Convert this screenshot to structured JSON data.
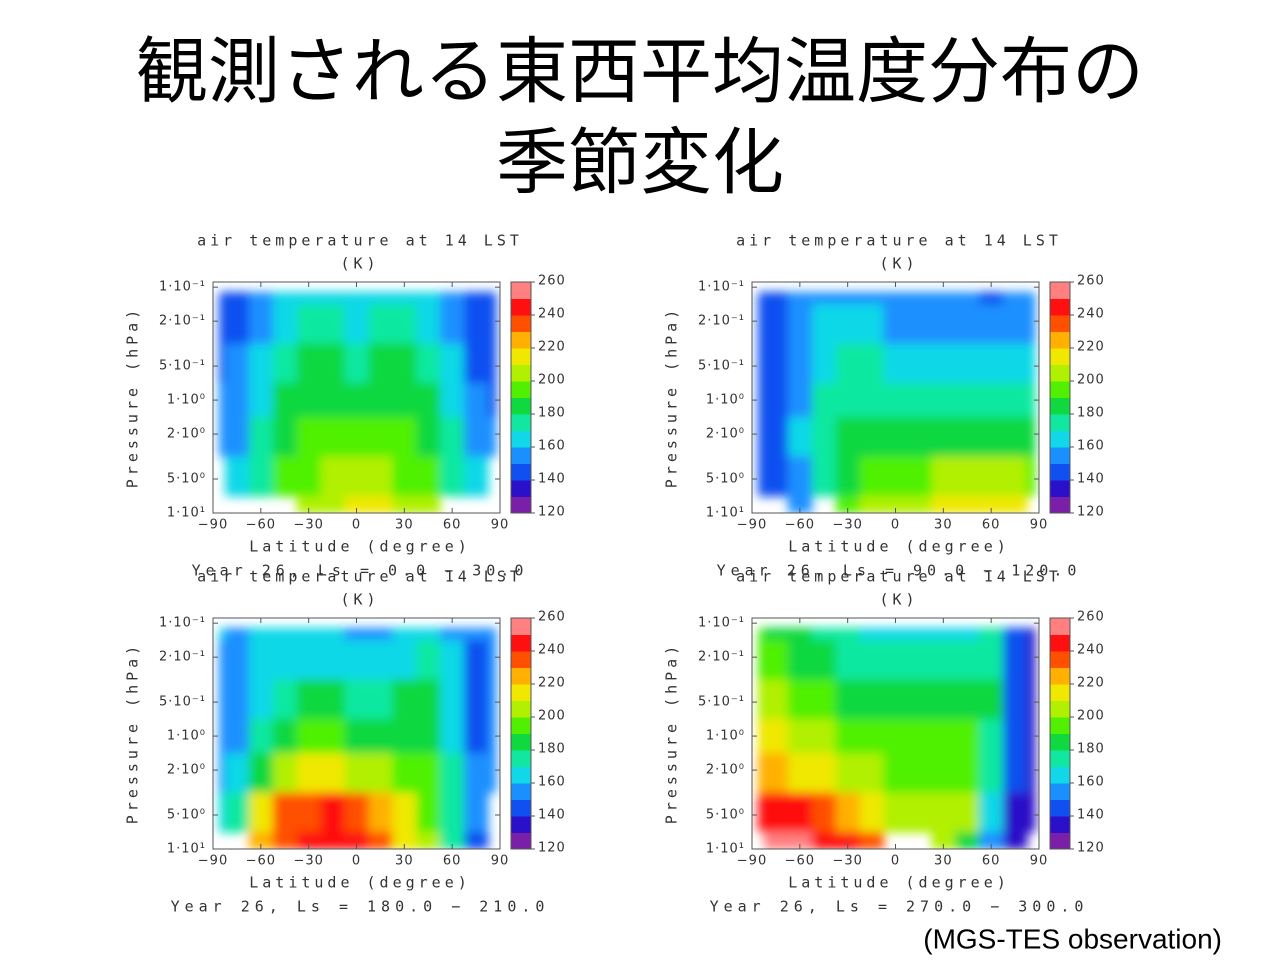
{
  "title": [
    "観測される東西平均温度分布の",
    "季節変化"
  ],
  "source": "(MGS-TES observation)",
  "chart_data": [
    {
      "type": "contour",
      "title": [
        "air temperature at 14 LST",
        "(K)"
      ],
      "xlabel": "Latitude (degree)",
      "ylabel": "Pressure (hPa)",
      "footer": "Year 26, Ls = 0.0 − 30.0",
      "x": [
        -90,
        -75,
        -60,
        -45,
        -30,
        -15,
        0,
        15,
        30,
        45,
        60,
        75,
        90
      ],
      "y": [
        0.1,
        0.2,
        0.5,
        1,
        2,
        5,
        10
      ],
      "z": [
        [
          145,
          145,
          150,
          160,
          165,
          165,
          162,
          165,
          165,
          160,
          150,
          145,
          145
        ],
        [
          145,
          148,
          155,
          165,
          170,
          170,
          168,
          170,
          170,
          165,
          152,
          145,
          145
        ],
        [
          148,
          150,
          160,
          175,
          180,
          180,
          178,
          180,
          180,
          175,
          160,
          148,
          145
        ],
        [
          150,
          155,
          165,
          180,
          185,
          185,
          185,
          185,
          185,
          180,
          165,
          150,
          148
        ],
        [
          152,
          158,
          170,
          185,
          190,
          192,
          192,
          192,
          190,
          185,
          170,
          155,
          150
        ],
        [
          null,
          160,
          175,
          190,
          195,
          200,
          205,
          200,
          195,
          190,
          175,
          160,
          null
        ],
        [
          null,
          null,
          null,
          null,
          200,
          205,
          215,
          210,
          205,
          200,
          null,
          null,
          null
        ]
      ],
      "xlim": [
        -90,
        90
      ],
      "ylim": [
        10,
        0.09
      ],
      "ylog": true,
      "xticks": [
        {
          "value": -90,
          "label": "−90"
        },
        {
          "value": -60,
          "label": "−60"
        },
        {
          "value": -30,
          "label": "−30"
        },
        0,
        30,
        60,
        90
      ],
      "yticks": [
        {
          "value": 0.1,
          "label": "1·10⁻¹"
        },
        {
          "value": 0.2,
          "label": "2·10⁻¹"
        },
        {
          "value": 0.5,
          "label": "5·10⁻¹"
        },
        {
          "value": 1,
          "label": "1·10⁰"
        },
        {
          "value": 2,
          "label": "2·10⁰"
        },
        {
          "value": 5,
          "label": "5·10⁰"
        },
        {
          "value": 10,
          "label": "1·10¹"
        }
      ],
      "colorbar": {
        "ticks": [
          120,
          140,
          160,
          180,
          200,
          220,
          240,
          260
        ],
        "levels": [
          120,
          130,
          140,
          150,
          160,
          170,
          180,
          190,
          200,
          210,
          220,
          230,
          240,
          250,
          260
        ],
        "colors": [
          "#7a1fa8",
          "#2a10c8",
          "#1050f0",
          "#1a90ff",
          "#10d8e8",
          "#10e8a0",
          "#10d840",
          "#50f000",
          "#b0f000",
          "#f0e800",
          "#ffb000",
          "#ff5000",
          "#ff1010",
          "#ff8080"
        ]
      }
    },
    {
      "type": "contour",
      "title": [
        "air temperature at 14 LST",
        "(K)"
      ],
      "xlabel": "Latitude (degree)",
      "ylabel": "Pressure (hPa)",
      "footer": "Year 26, Ls = 90.0 − 120.0",
      "x": [
        -90,
        -75,
        -60,
        -45,
        -30,
        -15,
        0,
        15,
        30,
        45,
        60,
        75,
        90
      ],
      "y": [
        0.1,
        0.2,
        0.5,
        1,
        2,
        5,
        10
      ],
      "z": [
        [
          145,
          140,
          150,
          155,
          155,
          155,
          152,
          150,
          150,
          150,
          148,
          150,
          150
        ],
        [
          145,
          140,
          152,
          160,
          162,
          160,
          158,
          155,
          155,
          155,
          155,
          155,
          155
        ],
        [
          145,
          142,
          155,
          165,
          170,
          170,
          168,
          165,
          165,
          165,
          165,
          165,
          165
        ],
        [
          145,
          145,
          158,
          170,
          175,
          178,
          178,
          178,
          178,
          178,
          178,
          178,
          178
        ],
        [
          145,
          145,
          160,
          172,
          180,
          185,
          185,
          185,
          188,
          188,
          188,
          188,
          188
        ],
        [
          145,
          145,
          155,
          170,
          185,
          192,
          195,
          198,
          200,
          200,
          200,
          200,
          198
        ],
        [
          null,
          null,
          150,
          null,
          190,
          200,
          205,
          205,
          210,
          210,
          215,
          210,
          null
        ]
      ],
      "xlim": [
        -90,
        90
      ],
      "ylim": [
        10,
        0.09
      ],
      "ylog": true,
      "xticks": [
        {
          "value": -90,
          "label": "−90"
        },
        {
          "value": -60,
          "label": "−60"
        },
        {
          "value": -30,
          "label": "−30"
        },
        0,
        30,
        60,
        90
      ],
      "yticks": [
        {
          "value": 0.1,
          "label": "1·10⁻¹"
        },
        {
          "value": 0.2,
          "label": "2·10⁻¹"
        },
        {
          "value": 0.5,
          "label": "5·10⁻¹"
        },
        {
          "value": 1,
          "label": "1·10⁰"
        },
        {
          "value": 2,
          "label": "2·10⁰"
        },
        {
          "value": 5,
          "label": "5·10⁰"
        },
        {
          "value": 10,
          "label": "1·10¹"
        }
      ],
      "colorbar": {
        "ticks": [
          120,
          140,
          160,
          180,
          200,
          220,
          240,
          260
        ],
        "levels": [
          120,
          130,
          140,
          150,
          160,
          170,
          180,
          190,
          200,
          210,
          220,
          230,
          240,
          250,
          260
        ],
        "colors": [
          "#7a1fa8",
          "#2a10c8",
          "#1050f0",
          "#1a90ff",
          "#10d8e8",
          "#10e8a0",
          "#10d840",
          "#50f000",
          "#b0f000",
          "#f0e800",
          "#ffb000",
          "#ff5000",
          "#ff1010",
          "#ff8080"
        ]
      }
    },
    {
      "type": "contour",
      "title": [
        "air temperature at 14 LST",
        "(K)"
      ],
      "xlabel": "Latitude (degree)",
      "ylabel": "Pressure (hPa)",
      "footer": "Year 26, Ls = 180.0 − 210.0",
      "x": [
        -90,
        -75,
        -60,
        -45,
        -30,
        -15,
        0,
        15,
        30,
        45,
        60,
        75,
        90
      ],
      "y": [
        0.1,
        0.2,
        0.5,
        1,
        2,
        5,
        10
      ],
      "z": [
        [
          160,
          155,
          160,
          160,
          162,
          160,
          155,
          158,
          160,
          165,
          155,
          150,
          150
        ],
        [
          158,
          155,
          160,
          165,
          168,
          168,
          165,
          165,
          168,
          170,
          160,
          148,
          150
        ],
        [
          155,
          155,
          165,
          175,
          180,
          180,
          178,
          178,
          180,
          180,
          165,
          148,
          150
        ],
        [
          155,
          158,
          170,
          185,
          190,
          190,
          188,
          188,
          188,
          185,
          168,
          148,
          150
        ],
        [
          155,
          165,
          185,
          200,
          210,
          210,
          205,
          200,
          195,
          190,
          170,
          150,
          150
        ],
        [
          160,
          170,
          215,
          230,
          238,
          240,
          235,
          225,
          210,
          195,
          172,
          150,
          null
        ],
        [
          null,
          null,
          225,
          230,
          240,
          245,
          240,
          230,
          215,
          200,
          170,
          145,
          null
        ]
      ],
      "xlim": [
        -90,
        90
      ],
      "ylim": [
        10,
        0.09
      ],
      "ylog": true,
      "xticks": [
        {
          "value": -90,
          "label": "−90"
        },
        {
          "value": -60,
          "label": "−60"
        },
        {
          "value": -30,
          "label": "−30"
        },
        0,
        30,
        60,
        90
      ],
      "yticks": [
        {
          "value": 0.1,
          "label": "1·10⁻¹"
        },
        {
          "value": 0.2,
          "label": "2·10⁻¹"
        },
        {
          "value": 0.5,
          "label": "5·10⁻¹"
        },
        {
          "value": 1,
          "label": "1·10⁰"
        },
        {
          "value": 2,
          "label": "2·10⁰"
        },
        {
          "value": 5,
          "label": "5·10⁰"
        },
        {
          "value": 10,
          "label": "1·10¹"
        }
      ],
      "colorbar": {
        "ticks": [
          120,
          140,
          160,
          180,
          200,
          220,
          240,
          260
        ],
        "levels": [
          120,
          130,
          140,
          150,
          160,
          170,
          180,
          190,
          200,
          210,
          220,
          230,
          240,
          250,
          260
        ],
        "colors": [
          "#7a1fa8",
          "#2a10c8",
          "#1050f0",
          "#1a90ff",
          "#10d8e8",
          "#10e8a0",
          "#10d840",
          "#50f000",
          "#b0f000",
          "#f0e800",
          "#ffb000",
          "#ff5000",
          "#ff1010",
          "#ff8080"
        ]
      }
    },
    {
      "type": "contour",
      "title": [
        "air temperature at 14 LST",
        "(K)"
      ],
      "xlabel": "Latitude (degree)",
      "ylabel": "Pressure (hPa)",
      "footer": "Year 26, Ls = 270.0 − 300.0",
      "x": [
        -90,
        -75,
        -60,
        -45,
        -30,
        -15,
        0,
        15,
        30,
        45,
        60,
        75,
        90
      ],
      "y": [
        0.1,
        0.2,
        0.5,
        1,
        2,
        5,
        10
      ],
      "z": [
        [
          190,
          185,
          180,
          175,
          170,
          168,
          165,
          165,
          165,
          165,
          170,
          140,
          130
        ],
        [
          195,
          190,
          185,
          180,
          175,
          172,
          170,
          170,
          170,
          170,
          175,
          140,
          130
        ],
        [
          200,
          200,
          195,
          190,
          185,
          182,
          180,
          180,
          180,
          182,
          180,
          140,
          130
        ],
        [
          210,
          210,
          205,
          200,
          195,
          192,
          190,
          190,
          190,
          192,
          175,
          140,
          130
        ],
        [
          220,
          220,
          218,
          212,
          205,
          200,
          198,
          198,
          198,
          198,
          170,
          140,
          130
        ],
        [
          240,
          240,
          240,
          235,
          225,
          215,
          208,
          205,
          205,
          200,
          165,
          138,
          130
        ],
        [
          null,
          260,
          255,
          245,
          240,
          230,
          null,
          null,
          200,
          180,
          155,
          135,
          null
        ]
      ],
      "xlim": [
        -90,
        90
      ],
      "ylim": [
        10,
        0.09
      ],
      "ylog": true,
      "xticks": [
        {
          "value": -90,
          "label": "−90"
        },
        {
          "value": -60,
          "label": "−60"
        },
        {
          "value": -30,
          "label": "−30"
        },
        0,
        30,
        60,
        90
      ],
      "yticks": [
        {
          "value": 0.1,
          "label": "1·10⁻¹"
        },
        {
          "value": 0.2,
          "label": "2·10⁻¹"
        },
        {
          "value": 0.5,
          "label": "5·10⁻¹"
        },
        {
          "value": 1,
          "label": "1·10⁰"
        },
        {
          "value": 2,
          "label": "2·10⁰"
        },
        {
          "value": 5,
          "label": "5·10⁰"
        },
        {
          "value": 10,
          "label": "1·10¹"
        }
      ],
      "colorbar": {
        "ticks": [
          120,
          140,
          160,
          180,
          200,
          220,
          240,
          260
        ],
        "levels": [
          120,
          130,
          140,
          150,
          160,
          170,
          180,
          190,
          200,
          210,
          220,
          230,
          240,
          250,
          260
        ],
        "colors": [
          "#7a1fa8",
          "#2a10c8",
          "#1050f0",
          "#1a90ff",
          "#10d8e8",
          "#10e8a0",
          "#10d840",
          "#50f000",
          "#b0f000",
          "#f0e800",
          "#ffb000",
          "#ff5000",
          "#ff1010",
          "#ff8080"
        ]
      }
    }
  ]
}
